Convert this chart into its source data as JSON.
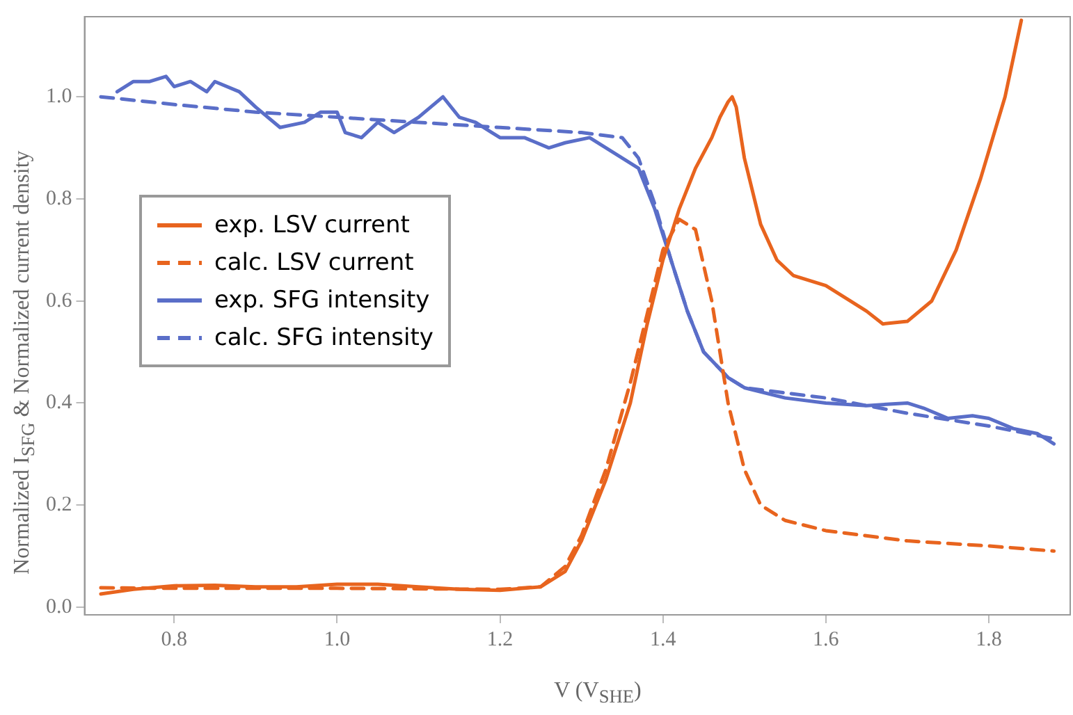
{
  "chart_data": {
    "type": "line",
    "xlabel": "V (V$_{SHE}$)",
    "ylabel": "Normalized I$_{SFG}$ & Normalized current density",
    "xlim": [
      0.69,
      1.9
    ],
    "ylim": [
      -0.015,
      1.157
    ],
    "xticks": [
      {
        "value": 0.8,
        "label": "0.8"
      },
      {
        "value": 1.0,
        "label": "1.0"
      },
      {
        "value": 1.2,
        "label": "1.2"
      },
      {
        "value": 1.4,
        "label": "1.4"
      },
      {
        "value": 1.6,
        "label": "1.6"
      },
      {
        "value": 1.8,
        "label": "1.8"
      }
    ],
    "yticks": [
      {
        "value": 0,
        "label": "0.0"
      },
      {
        "value": 0.2,
        "label": "0.2"
      },
      {
        "value": 0.4,
        "label": "0.4"
      },
      {
        "value": 0.6,
        "label": "0.6"
      },
      {
        "value": 0.8,
        "label": "0.8"
      },
      {
        "value": 1.0,
        "label": "1.0"
      }
    ],
    "grid": false,
    "legend": "left",
    "marker": "none",
    "series": [
      {
        "name": "exp. LSV current",
        "color": "#e8641e",
        "line_style": "solid",
        "x": [
          0.71,
          0.75,
          0.8,
          0.85,
          0.9,
          0.95,
          1.0,
          1.05,
          1.1,
          1.15,
          1.2,
          1.25,
          1.28,
          1.3,
          1.33,
          1.36,
          1.38,
          1.4,
          1.42,
          1.44,
          1.46,
          1.47,
          1.48,
          1.485,
          1.49,
          1.5,
          1.52,
          1.54,
          1.56,
          1.6,
          1.63,
          1.65,
          1.67,
          1.7,
          1.73,
          1.76,
          1.79,
          1.82,
          1.84
        ],
        "values": [
          0.026,
          0.035,
          0.042,
          0.043,
          0.04,
          0.04,
          0.045,
          0.045,
          0.04,
          0.035,
          0.033,
          0.04,
          0.07,
          0.13,
          0.25,
          0.4,
          0.55,
          0.68,
          0.78,
          0.86,
          0.92,
          0.96,
          0.99,
          1.0,
          0.98,
          0.88,
          0.75,
          0.68,
          0.65,
          0.63,
          0.6,
          0.58,
          0.555,
          0.56,
          0.6,
          0.7,
          0.84,
          1.0,
          1.15
        ]
      },
      {
        "name": "calc. LSV current",
        "color": "#e8641e",
        "line_style": "dashed",
        "x": [
          0.71,
          0.8,
          1.0,
          1.2,
          1.25,
          1.28,
          1.3,
          1.33,
          1.36,
          1.38,
          1.4,
          1.42,
          1.44,
          1.46,
          1.48,
          1.5,
          1.52,
          1.55,
          1.6,
          1.7,
          1.8,
          1.88
        ],
        "values": [
          0.038,
          0.037,
          0.037,
          0.035,
          0.04,
          0.08,
          0.14,
          0.27,
          0.44,
          0.57,
          0.7,
          0.76,
          0.74,
          0.6,
          0.4,
          0.27,
          0.2,
          0.17,
          0.15,
          0.13,
          0.12,
          0.11
        ]
      },
      {
        "name": "exp. SFG intensity",
        "color": "#5a6ec8",
        "line_style": "solid",
        "x": [
          0.73,
          0.75,
          0.77,
          0.79,
          0.8,
          0.82,
          0.84,
          0.85,
          0.88,
          0.9,
          0.93,
          0.96,
          0.98,
          1.0,
          1.01,
          1.03,
          1.05,
          1.07,
          1.1,
          1.13,
          1.15,
          1.17,
          1.19,
          1.2,
          1.23,
          1.26,
          1.28,
          1.31,
          1.34,
          1.37,
          1.39,
          1.41,
          1.43,
          1.45,
          1.48,
          1.5,
          1.55,
          1.6,
          1.65,
          1.7,
          1.72,
          1.75,
          1.78,
          1.8,
          1.83,
          1.86,
          1.88
        ],
        "values": [
          1.01,
          1.03,
          1.03,
          1.04,
          1.02,
          1.03,
          1.01,
          1.03,
          1.01,
          0.98,
          0.94,
          0.95,
          0.97,
          0.97,
          0.93,
          0.92,
          0.95,
          0.93,
          0.96,
          1.0,
          0.96,
          0.95,
          0.93,
          0.92,
          0.92,
          0.9,
          0.91,
          0.92,
          0.89,
          0.86,
          0.78,
          0.68,
          0.58,
          0.5,
          0.45,
          0.43,
          0.41,
          0.4,
          0.395,
          0.4,
          0.39,
          0.37,
          0.375,
          0.37,
          0.35,
          0.34,
          0.32
        ]
      },
      {
        "name": "calc. SFG intensity",
        "color": "#5a6ec8",
        "line_style": "dashed",
        "x": [
          0.71,
          0.8,
          0.9,
          1.0,
          1.1,
          1.2,
          1.3,
          1.35,
          1.37,
          1.39,
          1.41,
          1.43,
          1.45,
          1.48,
          1.5,
          1.6,
          1.7,
          1.8,
          1.88
        ],
        "values": [
          1.0,
          0.985,
          0.97,
          0.96,
          0.95,
          0.94,
          0.93,
          0.92,
          0.88,
          0.79,
          0.68,
          0.58,
          0.5,
          0.45,
          0.43,
          0.41,
          0.38,
          0.355,
          0.33
        ]
      }
    ]
  }
}
